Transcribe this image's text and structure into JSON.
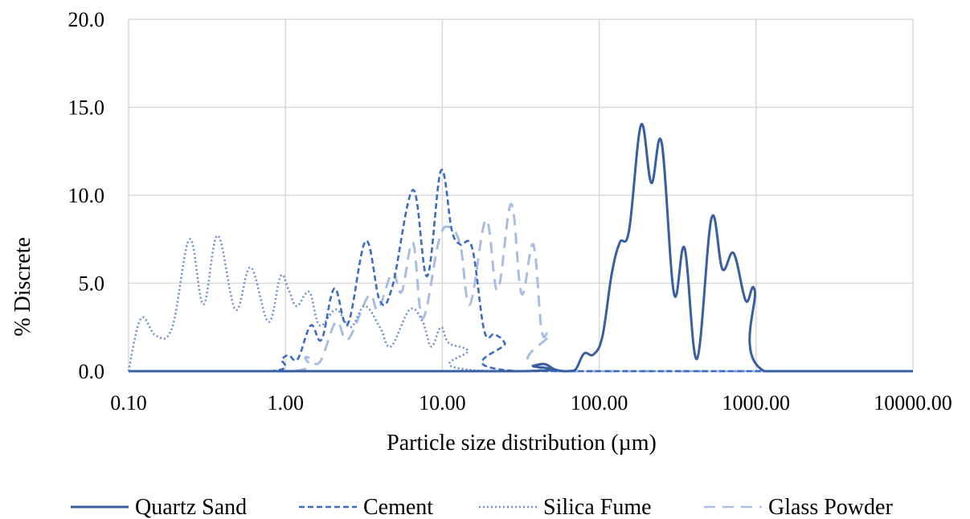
{
  "chart_data": {
    "type": "line",
    "title": "",
    "xlabel": "Particle size distribution (µm)",
    "ylabel": "% Discrete",
    "x_scale": "log",
    "xlim": [
      0.1,
      10000
    ],
    "ylim": [
      0,
      20
    ],
    "x_ticks": [
      "0.10",
      "1.00",
      "10.00",
      "100.00",
      "1000.00",
      "10000.00"
    ],
    "y_ticks": [
      "0.0",
      "5.0",
      "10.0",
      "15.0",
      "20.0"
    ],
    "grid": true,
    "legend_position": "bottom",
    "series": [
      {
        "name": "Quartz Sand",
        "color": "#3a5fa0",
        "dash": "solid",
        "points": [
          [
            0.1,
            0
          ],
          [
            30,
            0
          ],
          [
            38,
            0.3
          ],
          [
            45,
            0.4
          ],
          [
            52,
            0.1
          ],
          [
            60,
            0
          ],
          [
            70,
            0.05
          ],
          [
            80,
            1.0
          ],
          [
            92,
            0.95
          ],
          [
            105,
            2.0
          ],
          [
            120,
            5.5
          ],
          [
            135,
            7.3
          ],
          [
            155,
            8.0
          ],
          [
            185,
            14.0
          ],
          [
            215,
            10.7
          ],
          [
            250,
            13.0
          ],
          [
            300,
            4.4
          ],
          [
            350,
            7.0
          ],
          [
            420,
            0.7
          ],
          [
            520,
            8.7
          ],
          [
            610,
            5.8
          ],
          [
            720,
            6.7
          ],
          [
            860,
            4.0
          ],
          [
            980,
            4.6
          ],
          [
            1130,
            0
          ],
          [
            10000,
            0
          ]
        ]
      },
      {
        "name": "Cement",
        "color": "#3d6bc4",
        "dash": "dashed",
        "points": [
          [
            0.1,
            0
          ],
          [
            0.8,
            0
          ],
          [
            0.95,
            0.7
          ],
          [
            1.05,
            0.9
          ],
          [
            1.2,
            0.7
          ],
          [
            1.45,
            2.6
          ],
          [
            1.7,
            1.8
          ],
          [
            2.05,
            4.7
          ],
          [
            2.5,
            2.7
          ],
          [
            3.25,
            7.4
          ],
          [
            4.0,
            4.0
          ],
          [
            4.8,
            4.8
          ],
          [
            6.5,
            10.3
          ],
          [
            8.0,
            5.4
          ],
          [
            9.8,
            11.4
          ],
          [
            11.5,
            8.0
          ],
          [
            13.0,
            7.2
          ],
          [
            15.5,
            7.0
          ],
          [
            18.5,
            2.3
          ],
          [
            21.5,
            2.1
          ],
          [
            25,
            1.6
          ],
          [
            30,
            0
          ],
          [
            10000,
            0
          ]
        ]
      },
      {
        "name": "Silica Fume",
        "color": "#6f8fd3",
        "dash": "dotted",
        "points": [
          [
            0.1,
            0
          ],
          [
            0.12,
            3.0
          ],
          [
            0.15,
            2.0
          ],
          [
            0.19,
            2.5
          ],
          [
            0.245,
            7.5
          ],
          [
            0.3,
            3.8
          ],
          [
            0.37,
            7.7
          ],
          [
            0.48,
            3.5
          ],
          [
            0.6,
            5.9
          ],
          [
            0.78,
            2.8
          ],
          [
            0.93,
            5.4
          ],
          [
            1.05,
            4.6
          ],
          [
            1.18,
            3.7
          ],
          [
            1.42,
            4.5
          ],
          [
            1.65,
            2.6
          ],
          [
            2.1,
            3.5
          ],
          [
            2.6,
            2.5
          ],
          [
            3.2,
            3.7
          ],
          [
            4.0,
            2.5
          ],
          [
            4.7,
            1.4
          ],
          [
            6.2,
            3.5
          ],
          [
            7.5,
            2.8
          ],
          [
            8.5,
            1.4
          ],
          [
            9.8,
            2.5
          ],
          [
            11.0,
            1.6
          ],
          [
            14.5,
            1.2
          ],
          [
            20,
            0
          ],
          [
            10000,
            0
          ]
        ]
      },
      {
        "name": "Glass Powder",
        "color": "#a9bde2",
        "dash": "long-dash",
        "points": [
          [
            0.1,
            0
          ],
          [
            1.1,
            0
          ],
          [
            1.35,
            0.8
          ],
          [
            1.65,
            0.5
          ],
          [
            2.1,
            2.8
          ],
          [
            2.5,
            1.8
          ],
          [
            3.4,
            4.3
          ],
          [
            3.9,
            3.5
          ],
          [
            4.8,
            5.6
          ],
          [
            5.5,
            4.5
          ],
          [
            6.5,
            7.3
          ],
          [
            7.5,
            3.0
          ],
          [
            9.5,
            7.4
          ],
          [
            11.0,
            8.2
          ],
          [
            13.0,
            7.2
          ],
          [
            15.0,
            3.8
          ],
          [
            19.0,
            8.6
          ],
          [
            22.5,
            4.6
          ],
          [
            27.5,
            9.5
          ],
          [
            32,
            4.4
          ],
          [
            38,
            7.2
          ],
          [
            43,
            2.3
          ],
          [
            48,
            2.1
          ],
          [
            55,
            0
          ],
          [
            10000,
            0
          ]
        ]
      }
    ]
  }
}
